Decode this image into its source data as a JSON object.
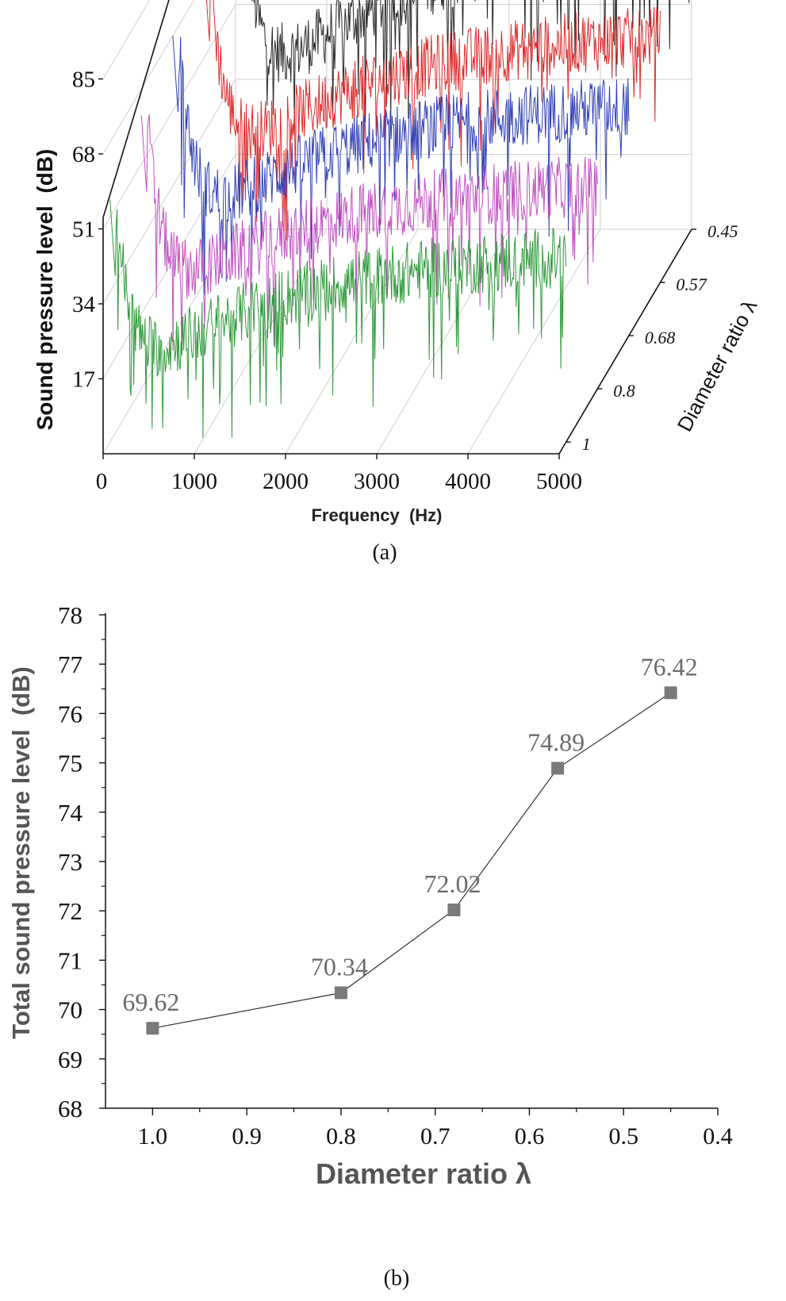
{
  "chart_data": [
    {
      "type": "line",
      "panel_label": "(a)",
      "projection": "3d-waterfall",
      "xlabel": "Frequency  (Hz)",
      "ylabel": "Sound pressure level  (dB)",
      "zlabel": "Diameter ratio λ",
      "x_ticks": [
        "0",
        "1000",
        "2000",
        "3000",
        "4000",
        "5000"
      ],
      "y_ticks": [
        "17",
        "34",
        "51",
        "68",
        "85"
      ],
      "z_ticks": [
        "1",
        "0.8",
        "0.68",
        "0.57",
        "0.45"
      ],
      "xlim": [
        0,
        5000
      ],
      "ylim": [
        0,
        102
      ],
      "series": [
        {
          "name": "1",
          "color": "#2e9a3a",
          "peak_db": 55,
          "base_db": 12,
          "rise_db": 32
        },
        {
          "name": "0.8",
          "color": "#c24fc2",
          "peak_db": 62,
          "base_db": 18,
          "rise_db": 30
        },
        {
          "name": "0.68",
          "color": "#3040b8",
          "peak_db": 68,
          "base_db": 22,
          "rise_db": 32
        },
        {
          "name": "0.57",
          "color": "#e12b2b",
          "peak_db": 72,
          "base_db": 24,
          "rise_db": 34
        },
        {
          "name": "0.45",
          "color": "#2a2a2a",
          "peak_db": 80,
          "base_db": 28,
          "rise_db": 40
        }
      ]
    },
    {
      "type": "line",
      "panel_label": "(b)",
      "xlabel": "Diameter ratio λ",
      "ylabel": "Total sound pressure level  (dB)",
      "x_ticks": [
        "1.0",
        "0.9",
        "0.8",
        "0.7",
        "0.6",
        "0.5",
        "0.4"
      ],
      "y_ticks": [
        "68",
        "69",
        "70",
        "71",
        "72",
        "73",
        "74",
        "75",
        "76",
        "77",
        "78"
      ],
      "xlim": [
        1.05,
        0.4
      ],
      "ylim": [
        68,
        78
      ],
      "x": [
        1.0,
        0.8,
        0.68,
        0.57,
        0.45
      ],
      "values": [
        69.62,
        70.34,
        72.02,
        74.89,
        76.42
      ],
      "data_labels": [
        "69.62",
        "70.34",
        "72.02",
        "74.89",
        "76.42"
      ],
      "marker_color": "#7a7a7a",
      "line_color": "#333333"
    }
  ]
}
